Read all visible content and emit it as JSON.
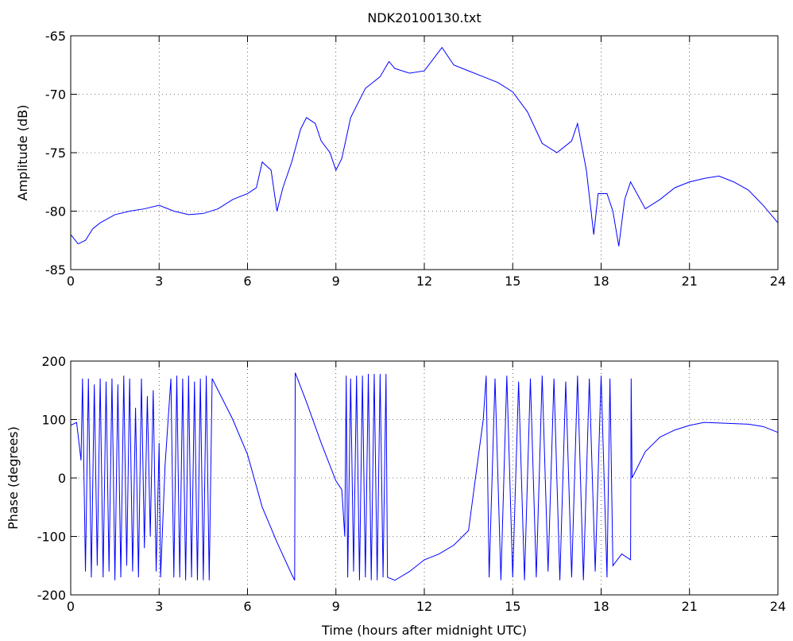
{
  "chart_data": [
    {
      "type": "line",
      "title": "NDK20100130.txt",
      "y_label": "Amplitude (dB)",
      "xlim": [
        0,
        24
      ],
      "xticks": [
        0,
        3,
        6,
        9,
        12,
        15,
        18,
        21,
        24
      ],
      "ylim": [
        -85,
        -65
      ],
      "yticks": [
        -85,
        -80,
        -75,
        -70,
        -65
      ],
      "grid": true,
      "series": [
        {
          "color": "#0000ff",
          "x": [
            0,
            0.25,
            0.5,
            0.75,
            1,
            1.5,
            2,
            2.5,
            3,
            3.5,
            4,
            4.5,
            5,
            5.5,
            6,
            6.3,
            6.5,
            6.8,
            7,
            7.2,
            7.5,
            7.8,
            8,
            8.3,
            8.5,
            8.8,
            9,
            9.2,
            9.5,
            10,
            10.5,
            10.8,
            11,
            11.5,
            12,
            12.3,
            12.6,
            13,
            13.5,
            14,
            14.5,
            15,
            15.5,
            16,
            16.5,
            17,
            17.2,
            17.5,
            17.75,
            17.9,
            18.2,
            18.4,
            18.6,
            18.8,
            19,
            19.5,
            20,
            20.5,
            21,
            21.5,
            22,
            22.5,
            23,
            23.5,
            24
          ],
          "values": [
            -82,
            -82.8,
            -82.5,
            -81.5,
            -81,
            -80.3,
            -80,
            -79.8,
            -79.5,
            -80,
            -80.3,
            -80.2,
            -79.8,
            -79,
            -78.5,
            -78,
            -75.8,
            -76.5,
            -80,
            -78,
            -75.8,
            -73,
            -72,
            -72.5,
            -74,
            -75,
            -76.5,
            -75.5,
            -72,
            -69.5,
            -68.5,
            -67.2,
            -67.8,
            -68.2,
            -68,
            -67,
            -66,
            -67.5,
            -68,
            -68.5,
            -69,
            -69.8,
            -71.5,
            -74.2,
            -75,
            -74,
            -72.5,
            -76.5,
            -82,
            -78.5,
            -78.5,
            -80,
            -83,
            -79,
            -77.5,
            -79.8,
            -79,
            -78,
            -77.5,
            -77.2,
            -77,
            -77.5,
            -78.2,
            -79.5,
            -81
          ]
        }
      ]
    },
    {
      "type": "line",
      "y_label": "Phase (degrees)",
      "x_label": "Time (hours after midnight UTC)",
      "xlim": [
        0,
        24
      ],
      "xticks": [
        0,
        3,
        6,
        9,
        12,
        15,
        18,
        21,
        24
      ],
      "ylim": [
        -200,
        200
      ],
      "yticks": [
        -200,
        -100,
        0,
        100,
        200
      ],
      "grid": true,
      "series": [
        {
          "color": "#0000ff",
          "x": [
            0,
            0.2,
            0.35,
            0.4,
            0.5,
            0.6,
            0.7,
            0.8,
            0.9,
            1.0,
            1.1,
            1.2,
            1.3,
            1.4,
            1.5,
            1.6,
            1.7,
            1.8,
            1.9,
            2.0,
            2.1,
            2.2,
            2.3,
            2.4,
            2.5,
            2.6,
            2.7,
            2.8,
            2.9,
            3.0,
            3.05,
            3.2,
            3.4,
            3.5,
            3.6,
            3.7,
            3.8,
            3.9,
            4.0,
            4.1,
            4.2,
            4.3,
            4.4,
            4.5,
            4.6,
            4.7,
            4.8,
            5.0,
            5.5,
            6.0,
            6.5,
            7.0,
            7.5,
            7.6,
            7.62,
            8.0,
            8.5,
            9.0,
            9.2,
            9.3,
            9.35,
            9.4,
            9.5,
            9.6,
            9.7,
            9.8,
            9.9,
            10.0,
            10.1,
            10.2,
            10.3,
            10.4,
            10.5,
            10.6,
            10.7,
            10.75,
            11.0,
            11.5,
            12.0,
            12.5,
            13.0,
            13.5,
            14.0,
            14.1,
            14.2,
            14.4,
            14.6,
            14.8,
            15.0,
            15.2,
            15.4,
            15.6,
            15.8,
            16.0,
            16.2,
            16.4,
            16.6,
            16.8,
            17.0,
            17.2,
            17.4,
            17.6,
            17.8,
            18.0,
            18.2,
            18.3,
            18.4,
            18.7,
            19.0,
            19.02,
            19.05,
            19.5,
            20.0,
            20.5,
            21.0,
            21.5,
            22.0,
            22.5,
            23.0,
            23.5,
            24.0
          ],
          "values": [
            90,
            95,
            30,
            170,
            -160,
            170,
            -170,
            160,
            -150,
            170,
            -170,
            165,
            -160,
            170,
            -175,
            160,
            -170,
            175,
            -150,
            170,
            -160,
            120,
            -170,
            170,
            -120,
            140,
            -100,
            150,
            -160,
            60,
            -170,
            20,
            170,
            -170,
            175,
            -170,
            170,
            -175,
            175,
            -170,
            165,
            -175,
            170,
            -175,
            175,
            -175,
            170,
            150,
            100,
            40,
            -50,
            -110,
            -165,
            -175,
            180,
            130,
            60,
            -5,
            -20,
            -100,
            175,
            -170,
            170,
            -160,
            175,
            -175,
            175,
            -170,
            178,
            -175,
            178,
            -175,
            178,
            -170,
            178,
            -170,
            -175,
            -160,
            -140,
            -130,
            -115,
            -90,
            100,
            175,
            -170,
            170,
            -175,
            175,
            -170,
            165,
            -175,
            170,
            -170,
            175,
            -160,
            170,
            -175,
            165,
            -170,
            175,
            -175,
            170,
            -160,
            175,
            -170,
            170,
            -150,
            -130,
            -140,
            170,
            0,
            45,
            70,
            82,
            90,
            95,
            94,
            93,
            92,
            88,
            78
          ]
        }
      ]
    }
  ]
}
